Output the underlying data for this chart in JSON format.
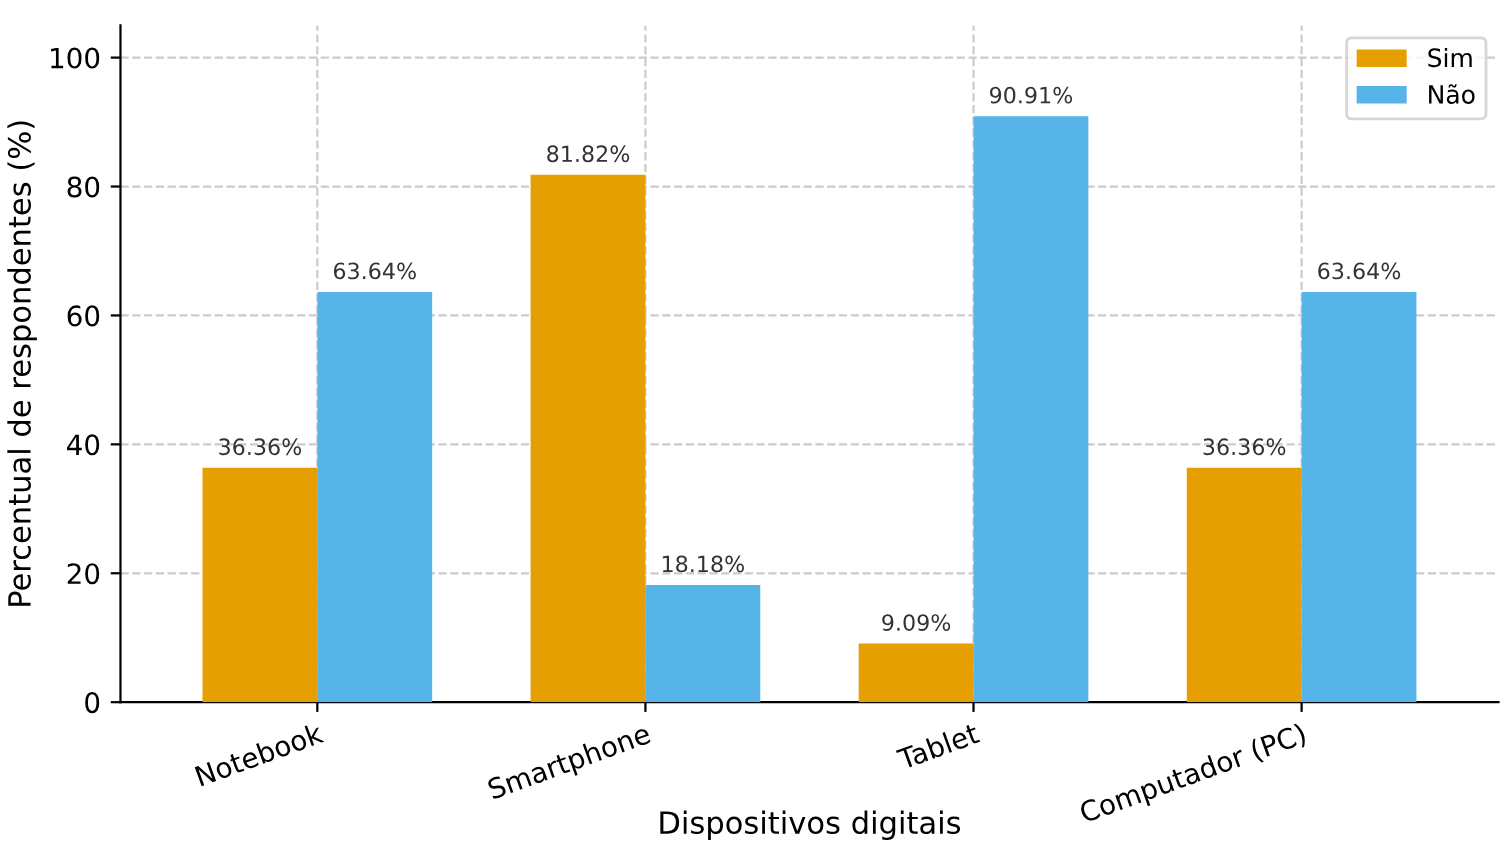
{
  "chart_data": {
    "type": "bar",
    "xlabel": "Dispositivos digitais",
    "ylabel": "Percentual de respondentes (%)",
    "categories": [
      "Notebook",
      "Smartphone",
      "Tablet",
      "Computador (PC)"
    ],
    "series": [
      {
        "name": "Sim",
        "color": "#e69f00",
        "values": [
          36.36,
          81.82,
          9.09,
          36.36
        ],
        "value_labels": [
          "36.36%",
          "81.82%",
          "9.09%",
          "36.36%"
        ]
      },
      {
        "name": "Não",
        "color": "#56b4e9",
        "values": [
          63.64,
          18.18,
          90.91,
          63.64
        ],
        "value_labels": [
          "63.64%",
          "18.18%",
          "90.91%",
          "63.64%"
        ]
      }
    ],
    "ylim": [
      0,
      105
    ],
    "yticks": [
      0,
      20,
      40,
      60,
      80,
      100
    ],
    "grid": true,
    "legend": "top right"
  }
}
